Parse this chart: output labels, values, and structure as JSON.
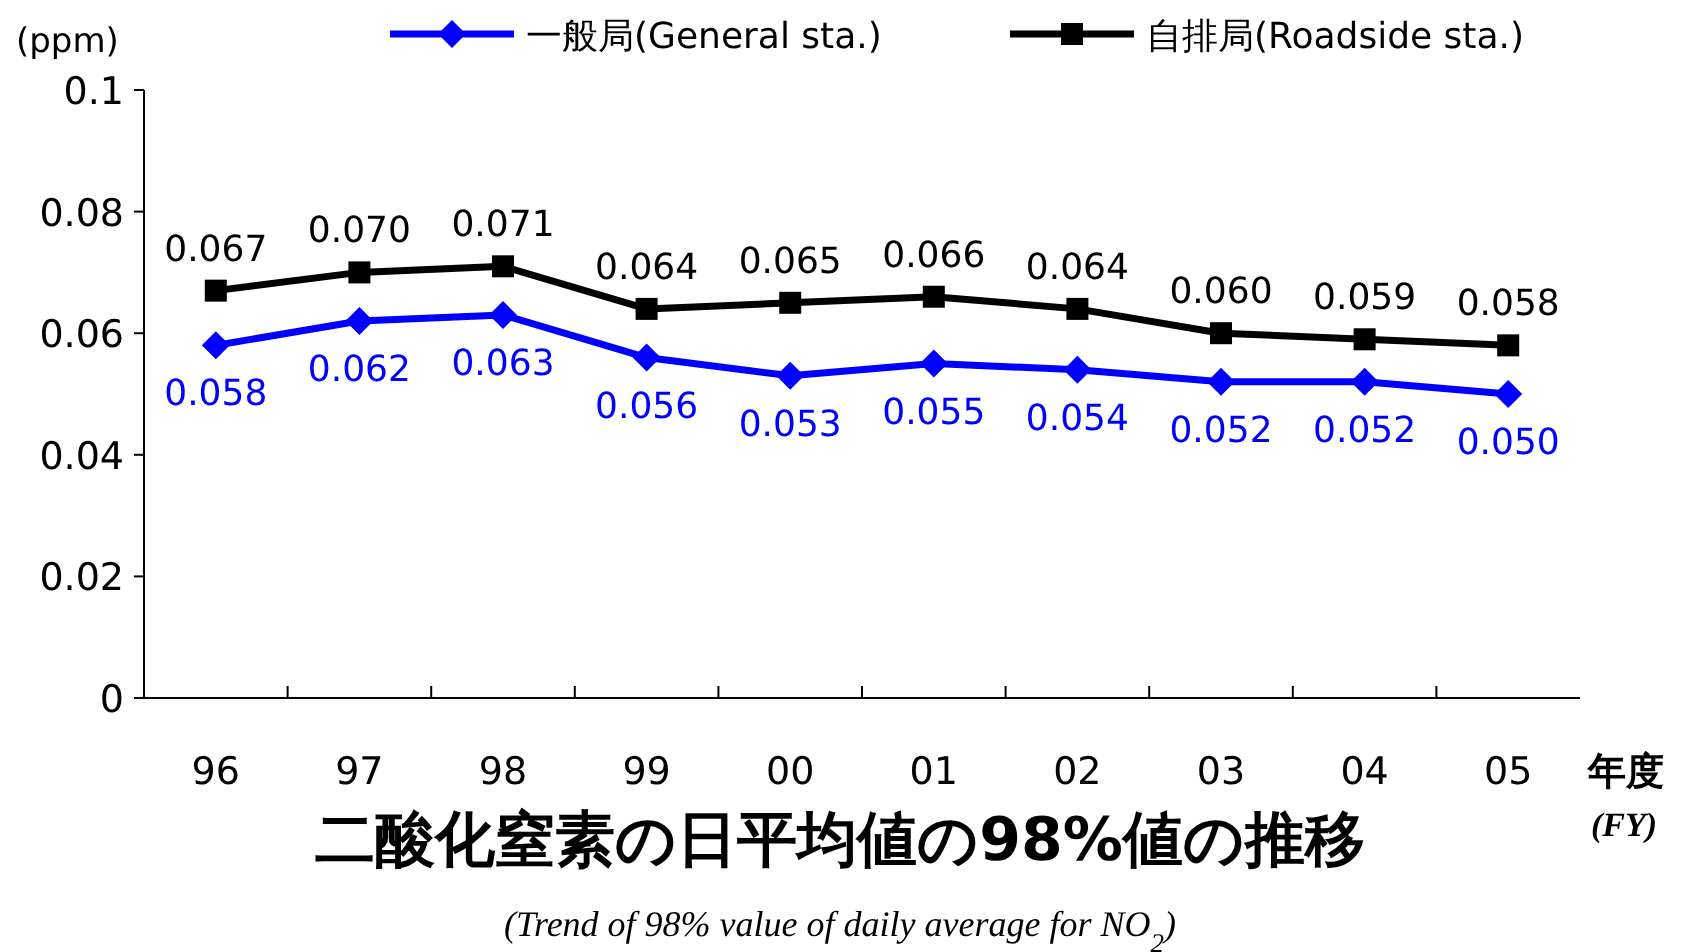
{
  "chart_data": {
    "type": "line",
    "title": "二酸化窒素の日平均値の98%値の推移",
    "subtitle": "(Trend of 98% value of daily average  for NO$_{2}$)",
    "ylabel": "(ppm)",
    "xlabel": "年度",
    "annotations": [
      "(FY)"
    ],
    "categories": [
      "96",
      "97",
      "98",
      "99",
      "00",
      "01",
      "02",
      "03",
      "04",
      "05"
    ],
    "series": [
      {
        "name": "一般局(General sta.)",
        "color": "#0000ff",
        "marker": "diamond",
        "values": [
          0.058,
          0.062,
          0.063,
          0.056,
          0.053,
          0.055,
          0.054,
          0.052,
          0.052,
          0.05
        ],
        "value_labels": [
          "0.058",
          "0.062",
          "0.063",
          "0.056",
          "0.053",
          "0.055",
          "0.054",
          "0.052",
          "0.052",
          "0.050"
        ]
      },
      {
        "name": "自排局(Roadside sta.)",
        "color": "#000000",
        "marker": "square",
        "values": [
          0.067,
          0.07,
          0.071,
          0.064,
          0.065,
          0.066,
          0.064,
          0.06,
          0.059,
          0.058
        ],
        "value_labels": [
          "0.067",
          "0.070",
          "0.071",
          "0.064",
          "0.065",
          "0.066",
          "0.064",
          "0.060",
          "0.059",
          "0.058"
        ]
      }
    ],
    "ylim": [
      0,
      0.1
    ],
    "yticks": [
      {
        "value": 0,
        "label": "0"
      },
      0.02,
      0.04,
      0.06,
      0.08,
      0.1
    ],
    "legend": "top",
    "grid": false,
    "line_style": "solid"
  }
}
